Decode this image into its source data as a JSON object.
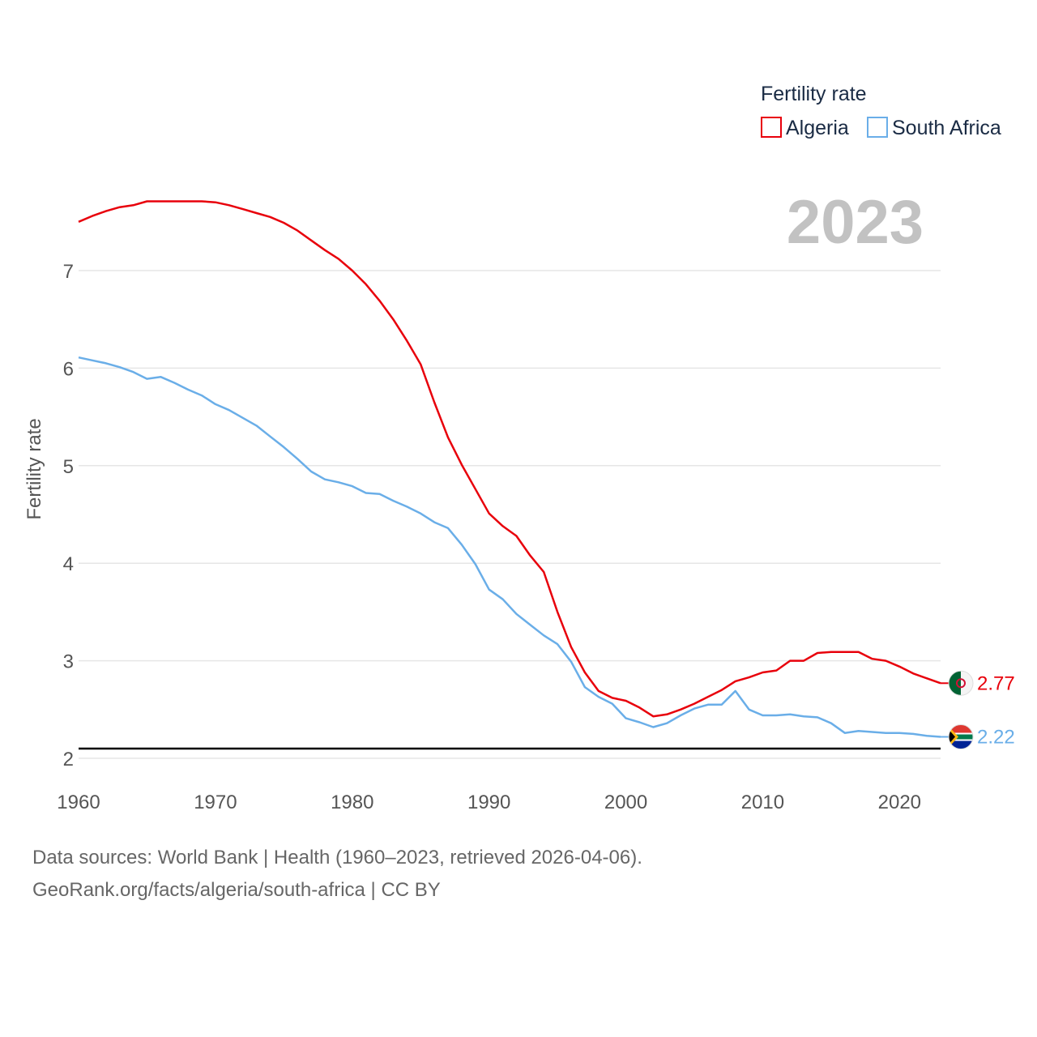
{
  "chart_data": {
    "type": "line",
    "title": "",
    "year_label": "2023",
    "legend_title": "Fertility rate",
    "xlabel": "",
    "ylabel": "Fertility rate",
    "xlim": [
      1960,
      2023
    ],
    "ylim": [
      2,
      7.8
    ],
    "x_ticks": [
      1960,
      1970,
      1980,
      1990,
      2000,
      2010,
      2020
    ],
    "y_ticks": [
      2,
      3,
      4,
      5,
      6,
      7
    ],
    "reference_line": 2.1,
    "x": [
      1960,
      1961,
      1962,
      1963,
      1964,
      1965,
      1966,
      1967,
      1968,
      1969,
      1970,
      1971,
      1972,
      1973,
      1974,
      1975,
      1976,
      1977,
      1978,
      1979,
      1980,
      1981,
      1982,
      1983,
      1984,
      1985,
      1986,
      1987,
      1988,
      1989,
      1990,
      1991,
      1992,
      1993,
      1994,
      1995,
      1996,
      1997,
      1998,
      1999,
      2000,
      2001,
      2002,
      2003,
      2004,
      2005,
      2006,
      2007,
      2008,
      2009,
      2010,
      2011,
      2012,
      2013,
      2014,
      2015,
      2016,
      2017,
      2018,
      2019,
      2020,
      2021,
      2022,
      2023
    ],
    "series": [
      {
        "name": "Algeria",
        "color": "#e8000b",
        "end_label": "2.77",
        "values": [
          7.5,
          7.56,
          7.61,
          7.65,
          7.67,
          7.71,
          7.71,
          7.71,
          7.71,
          7.71,
          7.7,
          7.67,
          7.63,
          7.59,
          7.55,
          7.49,
          7.41,
          7.31,
          7.21,
          7.12,
          7.0,
          6.86,
          6.69,
          6.5,
          6.28,
          6.04,
          5.65,
          5.29,
          5.01,
          4.76,
          4.51,
          4.38,
          4.28,
          4.08,
          3.91,
          3.5,
          3.14,
          2.88,
          2.69,
          2.62,
          2.59,
          2.52,
          2.43,
          2.45,
          2.5,
          2.56,
          2.63,
          2.7,
          2.79,
          2.83,
          2.88,
          2.9,
          3.0,
          3.0,
          3.08,
          3.09,
          3.09,
          3.09,
          3.02,
          3.0,
          2.94,
          2.87,
          2.82,
          2.77
        ]
      },
      {
        "name": "South Africa",
        "color": "#6aaee8",
        "end_label": "2.22",
        "values": [
          6.11,
          6.08,
          6.05,
          6.01,
          5.96,
          5.89,
          5.91,
          5.85,
          5.78,
          5.72,
          5.63,
          5.57,
          5.49,
          5.41,
          5.3,
          5.19,
          5.07,
          4.94,
          4.86,
          4.83,
          4.79,
          4.72,
          4.71,
          4.64,
          4.58,
          4.51,
          4.42,
          4.36,
          4.19,
          3.99,
          3.73,
          3.63,
          3.48,
          3.37,
          3.26,
          3.17,
          2.99,
          2.73,
          2.63,
          2.56,
          2.41,
          2.37,
          2.32,
          2.36,
          2.44,
          2.51,
          2.55,
          2.55,
          2.69,
          2.5,
          2.44,
          2.44,
          2.45,
          2.43,
          2.42,
          2.36,
          2.26,
          2.28,
          2.27,
          2.26,
          2.26,
          2.25,
          2.23,
          2.22
        ]
      }
    ]
  },
  "sources_line": "Data sources: World Bank | Health (1960–2023, retrieved 2026-04-06).",
  "credit_line": "GeoRank.org/facts/algeria/south-africa | CC BY"
}
